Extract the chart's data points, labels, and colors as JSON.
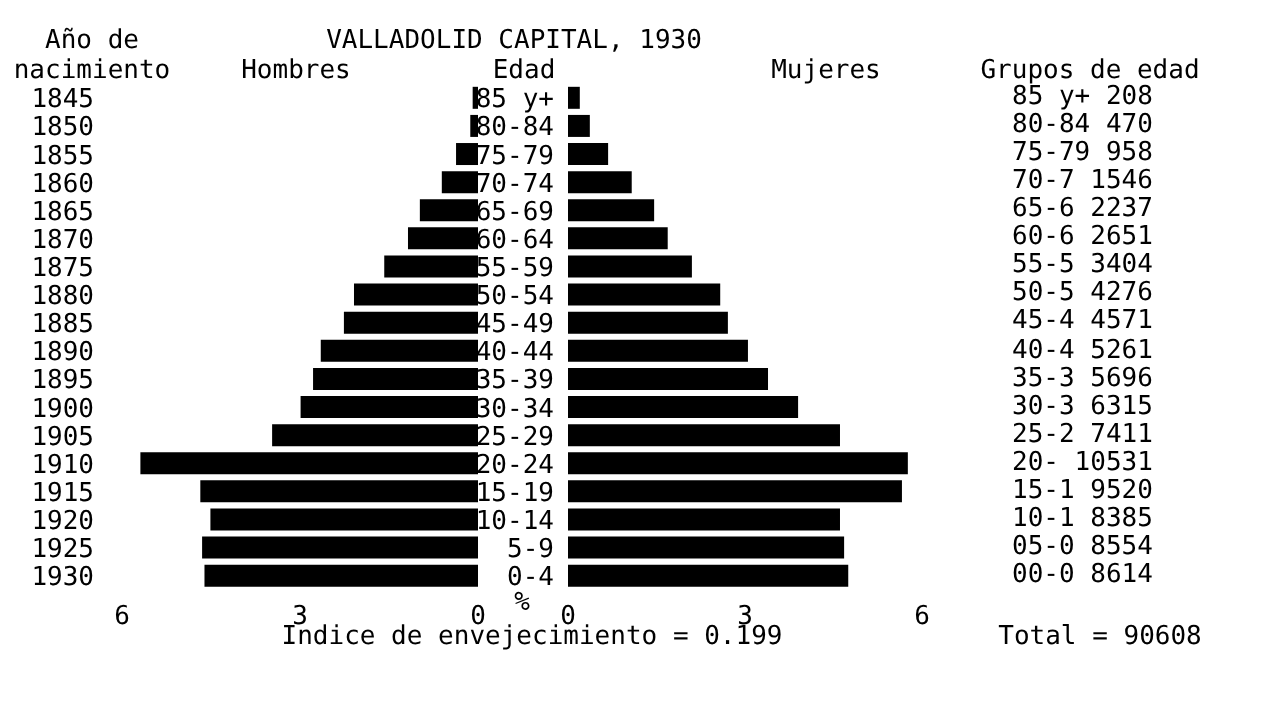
{
  "chart_data": [
    {
      "type": "bar",
      "orientation": "horizontal",
      "title": "VALLADOLID CAPITAL, 1930",
      "subtitle": "Hombres",
      "ylabel": "Año de nacimiento",
      "xlabel": "%",
      "annotations": [
        "Indice de envejecimiento = 0.199"
      ],
      "categories": [
        "1845",
        "1850",
        "1855",
        "1860",
        "1865",
        "1870",
        "1875",
        "1880",
        "1885",
        "1890",
        "1895",
        "1900",
        "1905",
        "1910",
        "1915",
        "1920",
        "1925",
        "1930"
      ],
      "values": [
        0.09,
        0.13,
        0.37,
        0.61,
        0.98,
        1.18,
        1.58,
        2.09,
        2.26,
        2.65,
        2.78,
        2.99,
        3.47,
        5.69,
        4.68,
        4.51,
        4.65,
        4.61
      ],
      "color": "#000000",
      "xlim": [
        6,
        0
      ],
      "xticks": [
        6,
        3,
        0
      ]
    },
    {
      "type": "bar",
      "orientation": "horizontal",
      "subtitle": "Mujeres",
      "ylabel": "Edad",
      "categories": [
        "85 y+",
        "80-84",
        "75-79",
        "70-74",
        "65-69",
        "60-64",
        "55-59",
        "50-54",
        "45-49",
        "40-44",
        "35-39",
        "30-34",
        "25-29",
        "20-24",
        "15-19",
        "10-14",
        "5-9",
        "0-4"
      ],
      "values": [
        0.2,
        0.37,
        0.68,
        1.08,
        1.46,
        1.69,
        2.1,
        2.58,
        2.71,
        3.05,
        3.39,
        3.9,
        4.61,
        5.76,
        5.66,
        4.61,
        4.68,
        4.75
      ],
      "color": "#000000",
      "xlim": [
        0,
        6
      ],
      "xticks": [
        0,
        3,
        6
      ]
    },
    {
      "type": "other",
      "title": "Grupos de edad",
      "categories": [
        "85 y+ 208",
        "80-84 470",
        "75-79 958",
        "70-7 1546",
        "65-6 2237",
        "60-6 2651",
        "55-5 3404",
        "50-5 4276",
        "45-4 4571",
        "40-4 5261",
        "35-3 5696",
        "30-3 6315",
        "25-2 7411",
        "20- 10531",
        "15-1 9520",
        "10-1 8385",
        "05-0 8554",
        "00-0 8614"
      ],
      "annotations": [
        "Total = 90608"
      ]
    }
  ]
}
